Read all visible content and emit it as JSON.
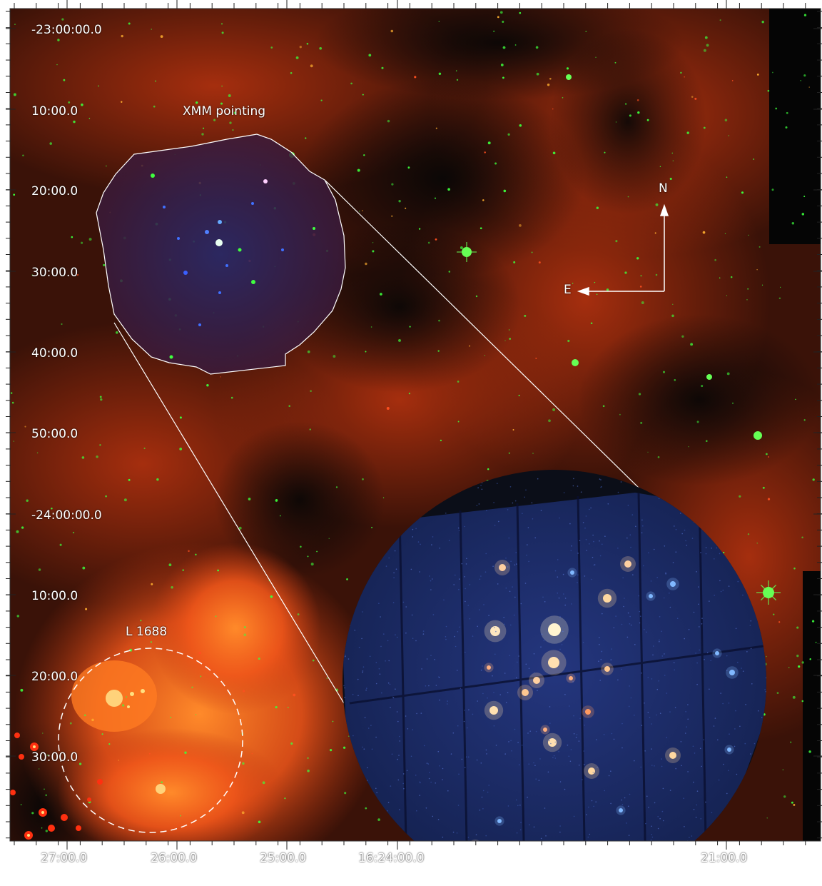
{
  "axes": {
    "y_tick_labels": [
      "-23:00:00.0",
      "10:00.0",
      "20:00.0",
      "30:00.0",
      "40:00.0",
      "50:00.0",
      "-24:00:00.0",
      "10:00.0",
      "20:00.0",
      "30:00.0"
    ],
    "x_tick_labels": [
      "27:00.0",
      "26:00.0",
      "25:00.0",
      "16:24:00.0",
      "21:00.0"
    ]
  },
  "annotations": {
    "xmm_label": "XMM pointing",
    "l1688_label": "L 1688",
    "north_label": "N",
    "east_label": "E"
  },
  "colors": {
    "background_space": "#0a0806",
    "nebula_red": "#c23a12",
    "nebula_orange": "#ff6a1a",
    "star_green": "#3cff3c",
    "xray_blue": "#1a2c6e",
    "overlay_white": "#ffffff"
  }
}
